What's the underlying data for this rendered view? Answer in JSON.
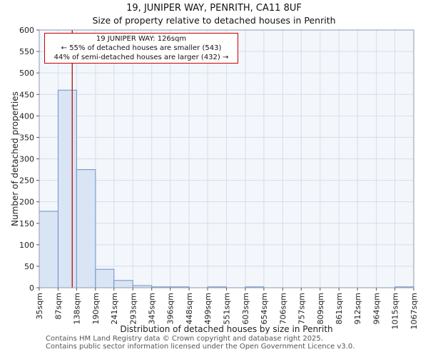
{
  "chart_data": {
    "type": "bar",
    "title": "19, JUNIPER WAY, PENRITH, CA11 8UF",
    "subtitle": "Size of property relative to detached houses in Penrith",
    "xlabel": "Distribution of detached houses by size in Penrith",
    "ylabel": "Number of detached properties",
    "x_unit": "sqm",
    "bin_edges": [
      35,
      87,
      138,
      190,
      241,
      293,
      345,
      396,
      448,
      499,
      551,
      603,
      654,
      706,
      757,
      809,
      861,
      912,
      964,
      1015,
      1067
    ],
    "xtick_labels": [
      "35sqm",
      "87sqm",
      "138sqm",
      "190sqm",
      "241sqm",
      "293sqm",
      "345sqm",
      "396sqm",
      "448sqm",
      "499sqm",
      "551sqm",
      "603sqm",
      "654sqm",
      "706sqm",
      "757sqm",
      "809sqm",
      "861sqm",
      "912sqm",
      "964sqm",
      "1015sqm",
      "1067sqm"
    ],
    "values": [
      178,
      460,
      275,
      43,
      17,
      5,
      2,
      2,
      0,
      2,
      0,
      2,
      0,
      0,
      0,
      0,
      0,
      0,
      0,
      2
    ],
    "yticks": [
      0,
      50,
      100,
      150,
      200,
      250,
      300,
      350,
      400,
      450,
      500,
      550,
      600
    ],
    "ylim": [
      0,
      600
    ],
    "xlim": [
      35,
      1067
    ],
    "grid": true,
    "legend": false,
    "marker": {
      "value": 126,
      "color": "#b42020"
    },
    "annotation": {
      "lines": [
        "19 JUNIPER WAY: 126sqm",
        "← 55% of detached houses are smaller (543)",
        "44% of semi-detached houses are larger (432) →"
      ]
    },
    "colors": {
      "bar_fill": "#d9e4f4",
      "bar_stroke": "#6e93c3",
      "plot_bg": "#f3f6fb",
      "grid": "#d5deee",
      "frame": "#8d9bb0",
      "tick": "#555555",
      "annotation_border": "#cc0000"
    }
  },
  "footer": {
    "line1": "Contains HM Land Registry data © Crown copyright and database right 2025.",
    "line2": "Contains public sector information licensed under the Open Government Licence v3.0."
  }
}
